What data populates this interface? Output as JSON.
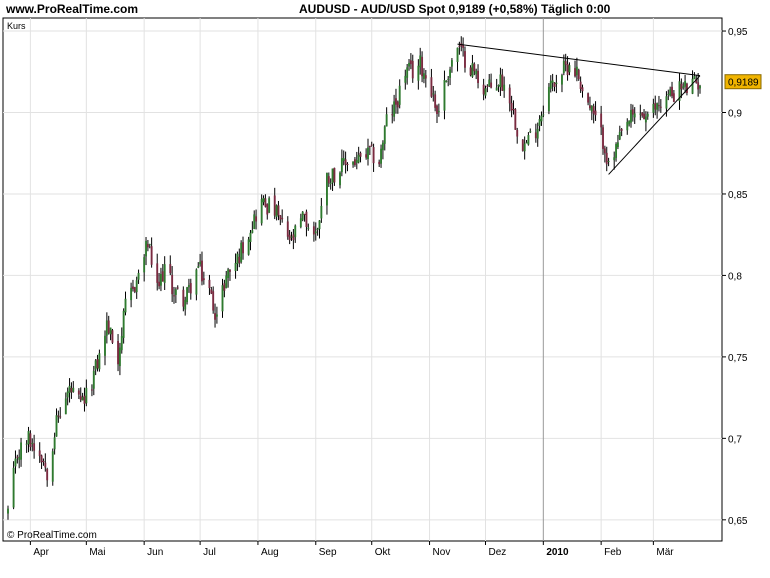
{
  "header": {
    "site": "www.ProRealTime.com",
    "title": "AUDUSD - AUD/USD Spot    0,9189 (+0,58%)    Täglich  0:00"
  },
  "panel_label": "Kurs",
  "copyright": "© ProRealTime.com",
  "price_badge": "0,9189",
  "colors": {
    "up_candle": "#2f7a2f",
    "down_candle": "#7a2a40",
    "wick": "#000000",
    "grid": "#e2e2e2",
    "badge": "#f0b400",
    "year_line": "#999999"
  },
  "chart_data": {
    "type": "candlestick",
    "symbol": "AUDUSD",
    "timeframe": "daily",
    "last_price": 0.9189,
    "change_pct": 0.58,
    "y_ticks": [
      {
        "v": 0.65,
        "label": "0,65"
      },
      {
        "v": 0.7,
        "label": "0,7"
      },
      {
        "v": 0.75,
        "label": "0,75"
      },
      {
        "v": 0.8,
        "label": "0,8"
      },
      {
        "v": 0.85,
        "label": "0,85"
      },
      {
        "v": 0.9,
        "label": "0,9"
      },
      {
        "v": 0.95,
        "label": "0,95"
      }
    ],
    "ylim": [
      0.637,
      0.958
    ],
    "x_months": [
      {
        "label": "Apr",
        "date": "2009-04-01"
      },
      {
        "label": "Mai",
        "date": "2009-05-01"
      },
      {
        "label": "Jun",
        "date": "2009-06-01"
      },
      {
        "label": "Jul",
        "date": "2009-07-01"
      },
      {
        "label": "Aug",
        "date": "2009-08-01"
      },
      {
        "label": "Sep",
        "date": "2009-09-01"
      },
      {
        "label": "Okt",
        "date": "2009-10-01"
      },
      {
        "label": "Nov",
        "date": "2009-11-01"
      },
      {
        "label": "Dez",
        "date": "2009-12-01"
      },
      {
        "label": "2010",
        "date": "2010-01-01",
        "bold": true
      },
      {
        "label": "Feb",
        "date": "2010-02-01"
      },
      {
        "label": "Mär",
        "date": "2010-03-01"
      }
    ],
    "x_range": [
      "2009-03-20",
      "2010-03-26"
    ],
    "close_path": [
      [
        "2009-03-20",
        0.655
      ],
      [
        "2009-03-25",
        0.69
      ],
      [
        "2009-03-31",
        0.7
      ],
      [
        "2009-04-07",
        0.69
      ],
      [
        "2009-04-10",
        0.68
      ],
      [
        "2009-04-15",
        0.71
      ],
      [
        "2009-04-22",
        0.73
      ],
      [
        "2009-04-28",
        0.72
      ],
      [
        "2009-05-01",
        0.725
      ],
      [
        "2009-05-08",
        0.75
      ],
      [
        "2009-05-12",
        0.77
      ],
      [
        "2009-05-18",
        0.75
      ],
      [
        "2009-05-22",
        0.78
      ],
      [
        "2009-05-29",
        0.8
      ],
      [
        "2009-06-03",
        0.82
      ],
      [
        "2009-06-08",
        0.79
      ],
      [
        "2009-06-12",
        0.805
      ],
      [
        "2009-06-17",
        0.79
      ],
      [
        "2009-06-23",
        0.785
      ],
      [
        "2009-06-30",
        0.805
      ],
      [
        "2009-07-06",
        0.79
      ],
      [
        "2009-07-10",
        0.775
      ],
      [
        "2009-07-15",
        0.8
      ],
      [
        "2009-07-21",
        0.81
      ],
      [
        "2009-07-28",
        0.83
      ],
      [
        "2009-08-03",
        0.845
      ],
      [
        "2009-08-10",
        0.84
      ],
      [
        "2009-08-14",
        0.83
      ],
      [
        "2009-08-19",
        0.82
      ],
      [
        "2009-08-25",
        0.835
      ],
      [
        "2009-09-01",
        0.825
      ],
      [
        "2009-09-07",
        0.86
      ],
      [
        "2009-09-14",
        0.865
      ],
      [
        "2009-09-18",
        0.87
      ],
      [
        "2009-09-24",
        0.87
      ],
      [
        "2009-09-30",
        0.875
      ],
      [
        "2009-10-05",
        0.87
      ],
      [
        "2009-10-09",
        0.895
      ],
      [
        "2009-10-14",
        0.905
      ],
      [
        "2009-10-19",
        0.925
      ],
      [
        "2009-10-23",
        0.925
      ],
      [
        "2009-10-27",
        0.93
      ],
      [
        "2009-11-02",
        0.915
      ],
      [
        "2009-11-05",
        0.9
      ],
      [
        "2009-11-11",
        0.925
      ],
      [
        "2009-11-16",
        0.94
      ],
      [
        "2009-11-19",
        0.935
      ],
      [
        "2009-11-25",
        0.925
      ],
      [
        "2009-11-30",
        0.915
      ],
      [
        "2009-12-04",
        0.915
      ],
      [
        "2009-12-09",
        0.92
      ],
      [
        "2009-12-14",
        0.91
      ],
      [
        "2009-12-18",
        0.89
      ],
      [
        "2009-12-22",
        0.88
      ],
      [
        "2009-12-28",
        0.89
      ],
      [
        "2010-01-04",
        0.915
      ],
      [
        "2010-01-11",
        0.925
      ],
      [
        "2010-01-15",
        0.93
      ],
      [
        "2010-01-19",
        0.925
      ],
      [
        "2010-01-25",
        0.905
      ],
      [
        "2010-01-29",
        0.895
      ],
      [
        "2010-02-03",
        0.88
      ],
      [
        "2010-02-05",
        0.865
      ],
      [
        "2010-02-10",
        0.88
      ],
      [
        "2010-02-16",
        0.895
      ],
      [
        "2010-02-22",
        0.9
      ],
      [
        "2010-02-26",
        0.895
      ],
      [
        "2010-03-03",
        0.905
      ],
      [
        "2010-03-09",
        0.91
      ],
      [
        "2010-03-15",
        0.915
      ],
      [
        "2010-03-19",
        0.915
      ],
      [
        "2010-03-26",
        0.919
      ]
    ],
    "trendlines": [
      {
        "name": "upper",
        "from": [
          "2009-11-16",
          0.942
        ],
        "to": [
          "2010-03-26",
          0.9226
        ]
      },
      {
        "name": "lower",
        "from": [
          "2010-02-05",
          0.862
        ],
        "to": [
          "2010-03-26",
          0.9226
        ]
      }
    ],
    "grid": true
  }
}
